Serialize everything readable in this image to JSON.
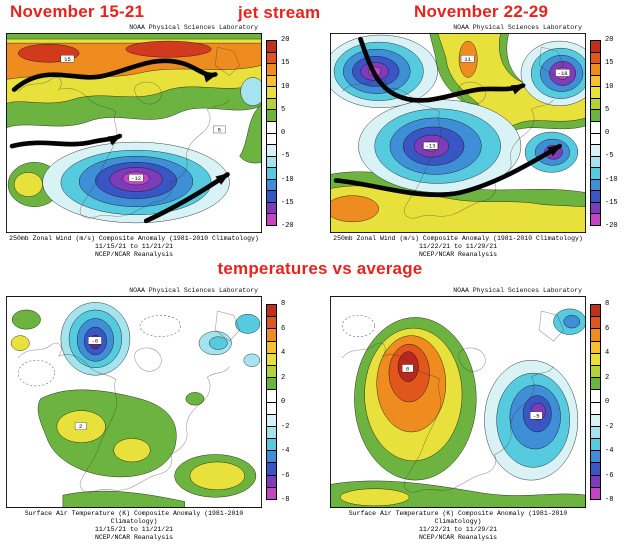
{
  "annotations": {
    "accent_color": "#e8231d",
    "top_left": "November 15-21",
    "top_center": "jet stream",
    "top_right": "November 22-29",
    "middle": "temperatures vs average"
  },
  "palette": [
    "#c0311c",
    "#e1561c",
    "#ef8c1f",
    "#f5c132",
    "#e8e13b",
    "#b5d338",
    "#6db33f",
    "#ffffff",
    "#ffffff",
    "#d9f2f5",
    "#a5e4ee",
    "#56cbe0",
    "#3f8fd6",
    "#3a56c4",
    "#7e3cb8",
    "#c444c4"
  ],
  "panels": [
    {
      "id": "wind-nov15-21",
      "header": "NOAA Physical Sciences Laboratory",
      "caption_line1": "250mb Zonal Wind (m/s) Composite Anomaly (1981-2010 Climatology)",
      "caption_line2": "11/15/21 to 11/21/21",
      "caption_line3": "NCEP/NCAR Reanalysis",
      "colorbar": {
        "unit": "m/s",
        "ticks": [
          "20",
          "15",
          "10",
          "5",
          "0",
          "-5",
          "-10",
          "-15",
          "-20"
        ]
      },
      "contour_labels": {
        "a": "15",
        "b": "-12",
        "c": "5"
      }
    },
    {
      "id": "wind-nov22-29",
      "header": "NOAA Physical Sciences Laboratory",
      "caption_line1": "250mb Zonal Wind (m/s) Composite Anomaly (1981-2010 Climatology)",
      "caption_line2": "11/22/21 to 11/29/21",
      "caption_line3": "NCEP/NCAR Reanalysis",
      "colorbar": {
        "unit": "m/s",
        "ticks": [
          "20",
          "15",
          "10",
          "5",
          "0",
          "-5",
          "-10",
          "-15",
          "-20"
        ]
      },
      "contour_labels": {
        "a": "11",
        "b": "-13",
        "c": "-18"
      }
    },
    {
      "id": "temp-nov15-21",
      "header": "NOAA Physical Sciences Laboratory",
      "caption_line1": "Surface Air Temperature (K) Composite Anomaly (1981-2010 Climatology)",
      "caption_line2": "11/15/21 to 11/21/21",
      "caption_line3": "NCEP/NCAR Reanalysis",
      "colorbar": {
        "unit": "K",
        "ticks": [
          "8",
          "6",
          "4",
          "2",
          "0",
          "-2",
          "-4",
          "-6",
          "-8"
        ]
      },
      "contour_labels": {
        "a": "-6",
        "b": "2"
      }
    },
    {
      "id": "temp-nov22-29",
      "header": "NOAA Physical Sciences Laboratory",
      "caption_line1": "Surface Air Temperature (K) Composite Anomaly (1981-2010 Climatology)",
      "caption_line2": "11/22/21 to 11/29/21",
      "caption_line3": "NCEP/NCAR Reanalysis",
      "colorbar": {
        "unit": "K",
        "ticks": [
          "8",
          "6",
          "4",
          "2",
          "0",
          "-2",
          "-4",
          "-6",
          "-8"
        ]
      },
      "contour_labels": {
        "a": "6",
        "b": "-5"
      }
    }
  ]
}
